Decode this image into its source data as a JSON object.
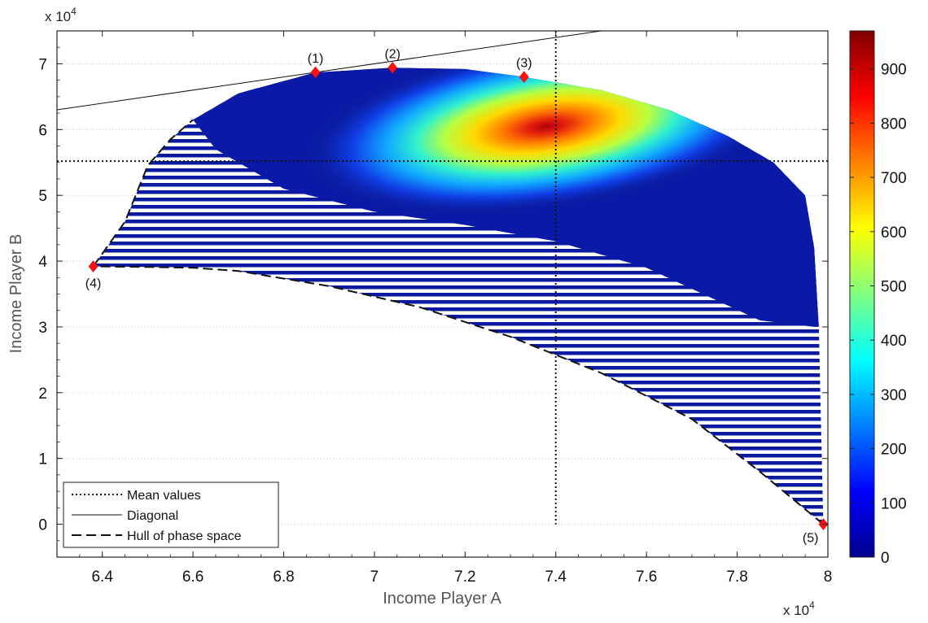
{
  "chart_data": {
    "type": "heatmap",
    "xlabel": "Income Player A",
    "ylabel": "Income Player B",
    "x_exponent": "x 10",
    "y_exponent": "x 10",
    "exponent_power": "4",
    "xlim": [
      6.3,
      8.0
    ],
    "ylim": [
      -0.5,
      7.5
    ],
    "x_ticks": [
      "6.4",
      "6.6",
      "6.8",
      "7",
      "7.2",
      "7.4",
      "7.6",
      "7.8",
      "8"
    ],
    "y_ticks": [
      "0",
      "1",
      "2",
      "3",
      "4",
      "5",
      "6",
      "7"
    ],
    "x_tick_values": [
      6.4,
      6.6,
      6.8,
      7.0,
      7.2,
      7.4,
      7.6,
      7.8,
      8.0
    ],
    "y_tick_values": [
      0,
      1,
      2,
      3,
      4,
      5,
      6,
      7
    ],
    "grid": "dotted horizontal",
    "colorbar": {
      "min": 0,
      "max": 970,
      "ticks": [
        "0",
        "100",
        "200",
        "300",
        "400",
        "500",
        "600",
        "700",
        "800",
        "900"
      ],
      "tick_values": [
        0,
        100,
        200,
        300,
        400,
        500,
        600,
        700,
        800,
        900
      ],
      "colormap": "jet"
    },
    "density_peak": {
      "x": 7.38,
      "y": 6.05,
      "value": 970
    },
    "mean_values": {
      "x": 7.4,
      "y": 5.52
    },
    "diagonal": [
      [
        6.3,
        6.3
      ],
      [
        7.5,
        7.5
      ]
    ],
    "hull": [
      [
        6.38,
        3.92
      ],
      [
        6.45,
        4.6
      ],
      [
        6.5,
        5.45
      ],
      [
        6.55,
        5.85
      ],
      [
        6.6,
        6.15
      ],
      [
        6.7,
        6.55
      ],
      [
        6.87,
        6.87
      ],
      [
        7.04,
        6.94
      ],
      [
        7.2,
        6.92
      ],
      [
        7.33,
        6.8
      ],
      [
        7.5,
        6.6
      ],
      [
        7.65,
        6.3
      ],
      [
        7.78,
        5.9
      ],
      [
        7.88,
        5.5
      ],
      [
        7.95,
        5.0
      ],
      [
        7.97,
        4.2
      ],
      [
        7.98,
        3.0
      ],
      [
        7.985,
        1.5
      ],
      [
        7.99,
        0.0
      ],
      [
        7.85,
        0.8
      ],
      [
        7.7,
        1.6
      ],
      [
        7.5,
        2.3
      ],
      [
        7.3,
        2.85
      ],
      [
        7.1,
        3.3
      ],
      [
        6.9,
        3.62
      ],
      [
        6.7,
        3.85
      ],
      [
        6.6,
        3.9
      ],
      [
        6.5,
        3.91
      ],
      [
        6.38,
        3.92
      ]
    ],
    "points": [
      {
        "label": "(1)",
        "x": 6.87,
        "y": 6.87,
        "label_pos": "above"
      },
      {
        "label": "(2)",
        "x": 7.04,
        "y": 6.94,
        "label_pos": "above"
      },
      {
        "label": "(3)",
        "x": 7.33,
        "y": 6.8,
        "label_pos": "above"
      },
      {
        "label": "(4)",
        "x": 6.38,
        "y": 3.92,
        "label_pos": "below"
      },
      {
        "label": "(5)",
        "x": 7.99,
        "y": 0.0,
        "label_pos": "below-left"
      }
    ],
    "legend": {
      "position": "bottom-left",
      "entries": [
        {
          "label": "Mean values",
          "style": "dotted"
        },
        {
          "label": "Diagonal",
          "style": "solid"
        },
        {
          "label": "Hull of phase space",
          "style": "dashed"
        }
      ]
    },
    "marker_color": "#ff1010"
  }
}
